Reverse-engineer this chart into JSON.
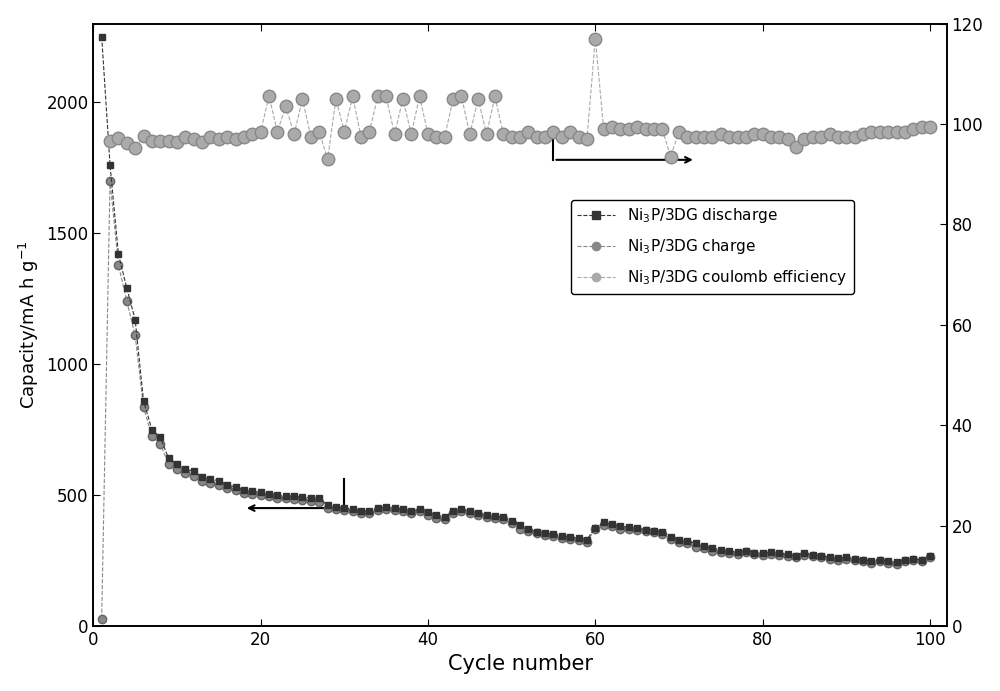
{
  "discharge_x": [
    1,
    2,
    3,
    4,
    5,
    6,
    7,
    8,
    9,
    10,
    11,
    12,
    13,
    14,
    15,
    16,
    17,
    18,
    19,
    20,
    21,
    22,
    23,
    24,
    25,
    26,
    27,
    28,
    29,
    30,
    31,
    32,
    33,
    34,
    35,
    36,
    37,
    38,
    39,
    40,
    41,
    42,
    43,
    44,
    45,
    46,
    47,
    48,
    49,
    50,
    51,
    52,
    53,
    54,
    55,
    56,
    57,
    58,
    59,
    60,
    61,
    62,
    63,
    64,
    65,
    66,
    67,
    68,
    69,
    70,
    71,
    72,
    73,
    74,
    75,
    76,
    77,
    78,
    79,
    80,
    81,
    82,
    83,
    84,
    85,
    86,
    87,
    88,
    89,
    90,
    91,
    92,
    93,
    94,
    95,
    96,
    97,
    98,
    99,
    100
  ],
  "discharge_y": [
    2250,
    1760,
    1420,
    1290,
    1170,
    860,
    750,
    720,
    640,
    620,
    600,
    590,
    570,
    560,
    555,
    540,
    530,
    520,
    515,
    510,
    505,
    500,
    498,
    495,
    492,
    490,
    488,
    460,
    455,
    450,
    445,
    440,
    438,
    450,
    455,
    450,
    445,
    440,
    445,
    435,
    425,
    415,
    440,
    445,
    440,
    430,
    425,
    420,
    415,
    400,
    385,
    370,
    360,
    355,
    350,
    345,
    340,
    335,
    330,
    375,
    395,
    390,
    380,
    378,
    373,
    368,
    363,
    358,
    340,
    330,
    325,
    315,
    305,
    298,
    290,
    285,
    282,
    288,
    280,
    278,
    283,
    278,
    273,
    268,
    278,
    272,
    268,
    262,
    258,
    262,
    256,
    253,
    248,
    253,
    248,
    243,
    252,
    257,
    252,
    268
  ],
  "charge_x": [
    1,
    2,
    3,
    4,
    5,
    6,
    7,
    8,
    9,
    10,
    11,
    12,
    13,
    14,
    15,
    16,
    17,
    18,
    19,
    20,
    21,
    22,
    23,
    24,
    25,
    26,
    27,
    28,
    29,
    30,
    31,
    32,
    33,
    34,
    35,
    36,
    37,
    38,
    39,
    40,
    41,
    42,
    43,
    44,
    45,
    46,
    47,
    48,
    49,
    50,
    51,
    52,
    53,
    54,
    55,
    56,
    57,
    58,
    59,
    60,
    61,
    62,
    63,
    64,
    65,
    66,
    67,
    68,
    69,
    70,
    71,
    72,
    73,
    74,
    75,
    76,
    77,
    78,
    79,
    80,
    81,
    82,
    83,
    84,
    85,
    86,
    87,
    88,
    89,
    90,
    91,
    92,
    93,
    94,
    95,
    96,
    97,
    98,
    99,
    100
  ],
  "charge_y": [
    28,
    1700,
    1380,
    1240,
    1110,
    835,
    725,
    695,
    618,
    598,
    585,
    572,
    552,
    545,
    538,
    527,
    518,
    508,
    505,
    500,
    496,
    490,
    487,
    485,
    481,
    477,
    475,
    452,
    448,
    442,
    438,
    432,
    430,
    443,
    447,
    441,
    437,
    432,
    437,
    422,
    412,
    408,
    432,
    437,
    432,
    422,
    417,
    412,
    407,
    393,
    372,
    363,
    353,
    348,
    342,
    337,
    332,
    327,
    322,
    372,
    387,
    382,
    372,
    372,
    367,
    362,
    357,
    352,
    332,
    322,
    317,
    302,
    297,
    288,
    282,
    277,
    273,
    282,
    273,
    272,
    276,
    272,
    267,
    262,
    272,
    267,
    262,
    257,
    252,
    257,
    252,
    247,
    242,
    247,
    242,
    237,
    247,
    252,
    247,
    262
  ],
  "coulomb_x": [
    2,
    3,
    4,
    5,
    6,
    7,
    8,
    9,
    10,
    11,
    12,
    13,
    14,
    15,
    16,
    17,
    18,
    19,
    20,
    21,
    22,
    23,
    24,
    25,
    26,
    27,
    28,
    29,
    30,
    31,
    32,
    33,
    34,
    35,
    36,
    37,
    38,
    39,
    40,
    41,
    42,
    43,
    44,
    45,
    46,
    47,
    48,
    49,
    50,
    51,
    52,
    53,
    54,
    55,
    56,
    57,
    58,
    59,
    60,
    61,
    62,
    63,
    64,
    65,
    66,
    67,
    68,
    69,
    70,
    71,
    72,
    73,
    74,
    75,
    76,
    77,
    78,
    79,
    80,
    81,
    82,
    83,
    84,
    85,
    86,
    87,
    88,
    89,
    90,
    91,
    92,
    93,
    94,
    95,
    96,
    97,
    98,
    99,
    100
  ],
  "coulomb_y": [
    96.6,
    97.2,
    96.2,
    95.2,
    97.7,
    96.7,
    96.7,
    96.6,
    96.5,
    97.5,
    97.0,
    96.5,
    97.5,
    97.0,
    97.5,
    97.0,
    97.5,
    98.0,
    98.5,
    105.5,
    98.5,
    103.5,
    98.0,
    105.0,
    97.5,
    98.5,
    93.0,
    105.0,
    98.5,
    105.5,
    97.5,
    98.5,
    105.5,
    105.5,
    98.0,
    105.0,
    98.0,
    105.5,
    98.0,
    97.5,
    97.5,
    105.0,
    105.5,
    98.0,
    105.0,
    98.0,
    105.5,
    98.0,
    97.5,
    97.5,
    98.5,
    97.5,
    97.5,
    98.5,
    97.5,
    98.5,
    97.5,
    97.0,
    117.0,
    99.0,
    99.5,
    99.0,
    99.0,
    99.5,
    99.0,
    99.0,
    99.0,
    93.5,
    98.5,
    97.5,
    97.5,
    97.5,
    97.5,
    98.0,
    97.5,
    97.5,
    97.5,
    98.0,
    98.0,
    97.5,
    97.5,
    97.0,
    95.5,
    97.0,
    97.5,
    97.5,
    98.0,
    97.5,
    97.5,
    97.5,
    98.0,
    98.5,
    98.5,
    98.5,
    98.5,
    98.5,
    99.0,
    99.5,
    99.5
  ],
  "discharge_color": "#333333",
  "charge_color": "#888888",
  "coulomb_color": "#aaaaaa",
  "xlabel": "Cycle number",
  "ylabel_left": "Capacity/mA h g$^{-1}$",
  "xlim": [
    0,
    102
  ],
  "ylim_left": [
    0,
    2300
  ],
  "ylim_right": [
    0,
    120
  ],
  "xticks": [
    0,
    20,
    40,
    60,
    80,
    100
  ],
  "yticks_left": [
    0,
    500,
    1000,
    1500,
    2000
  ],
  "yticks_right": [
    0,
    20,
    40,
    60,
    80,
    100,
    120
  ],
  "legend_discharge": "Ni$_3$P/3DG discharge",
  "legend_charge": "Ni$_3$P/3DG charge",
  "legend_coulomb": "Ni$_3$P/3DG coulomb efficiency"
}
